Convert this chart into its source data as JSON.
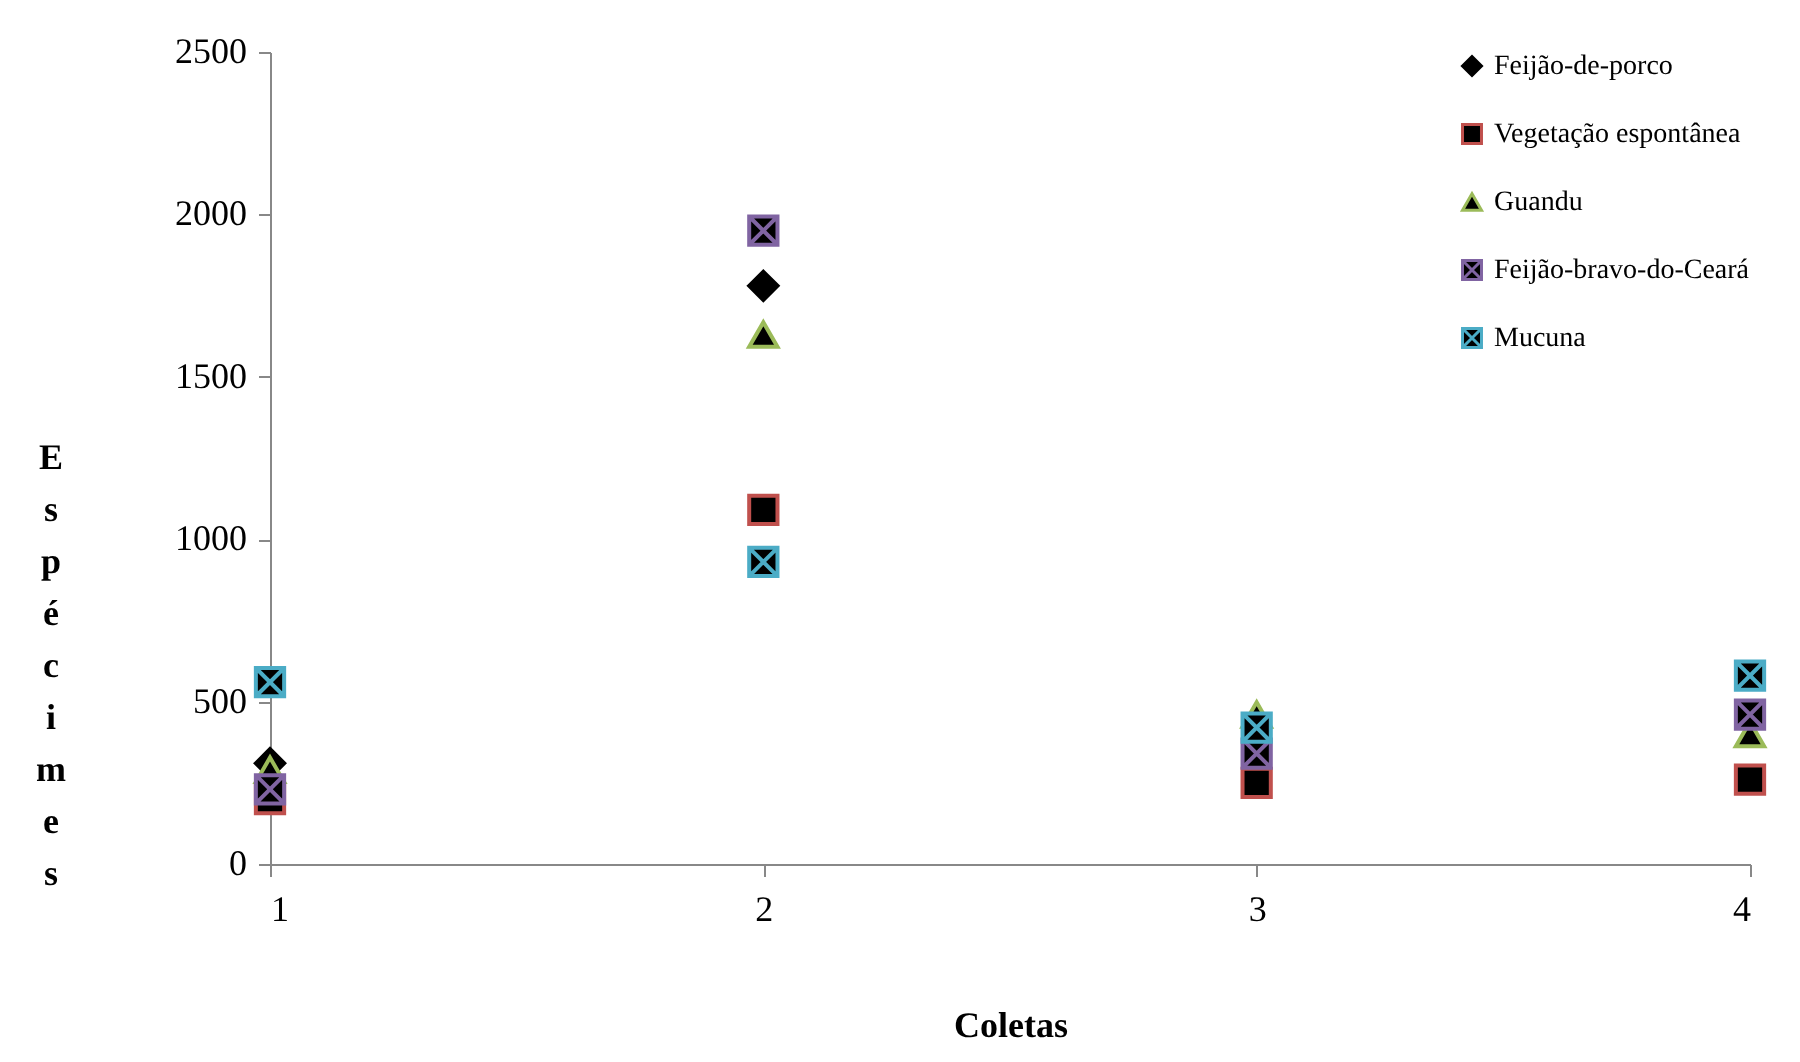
{
  "chart_data": {
    "type": "scatter",
    "xlabel": "Coletas",
    "ylabel": "Espécimes",
    "x": [
      1,
      2,
      3,
      4
    ],
    "xlim": [
      1,
      4
    ],
    "xticks": [
      1,
      2,
      3,
      4
    ],
    "ylim": [
      0,
      2500
    ],
    "yticks": [
      0,
      500,
      1000,
      1500,
      2000,
      2500
    ],
    "grid": false,
    "legend": "top right",
    "series": [
      {
        "name": "Feijão-de-porco",
        "color": "#000000",
        "marker": "diamond",
        "values": [
          310,
          1780,
          null,
          null
        ]
      },
      {
        "name": "Vegetação espontânea",
        "color": "#c0504d",
        "marker": "square",
        "values": [
          200,
          1090,
          250,
          260
        ]
      },
      {
        "name": "Guandu",
        "color": "#9bbb59",
        "marker": "triangle",
        "values": [
          290,
          1630,
          460,
          400
        ]
      },
      {
        "name": "Feijão-bravo-do-Ceará",
        "color": "#8064a2",
        "marker": "cross",
        "values": [
          230,
          1950,
          340,
          460
        ]
      },
      {
        "name": "Mucuna",
        "color": "#4bacc6",
        "marker": "cross",
        "values": [
          560,
          930,
          420,
          580
        ]
      }
    ]
  }
}
